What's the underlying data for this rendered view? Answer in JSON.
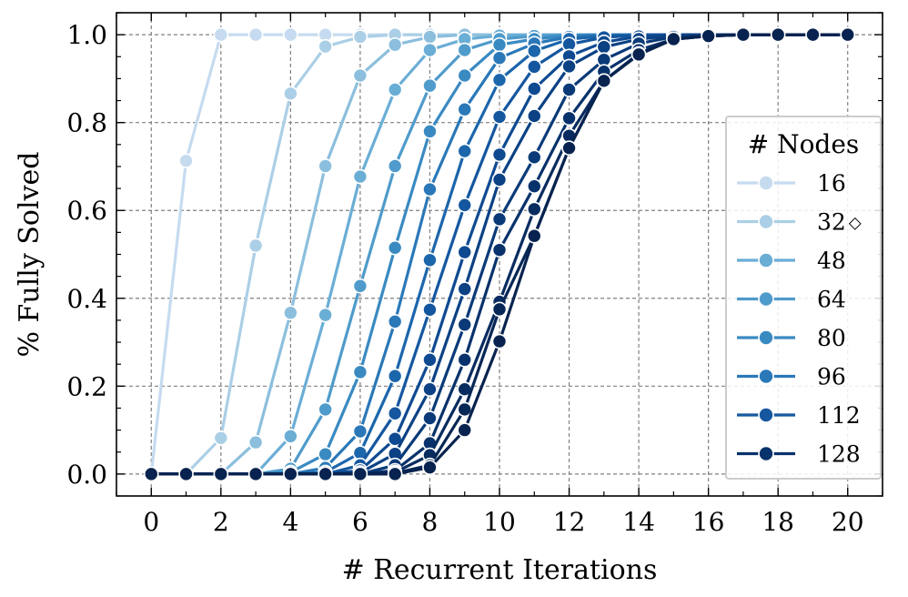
{
  "chart_data": {
    "type": "line",
    "xlabel": "# Recurrent Iterations",
    "ylabel": "% Fully Solved",
    "xlim": [
      -1,
      21
    ],
    "ylim": [
      -0.05,
      1.05
    ],
    "xticks": [
      "0",
      "2",
      "4",
      "6",
      "8",
      "10",
      "12",
      "14",
      "16",
      "18",
      "20"
    ],
    "yticks": [
      "0.0",
      "0.2",
      "0.4",
      "0.6",
      "0.8",
      "1.0"
    ],
    "grid": true,
    "legend_title": "# Nodes",
    "legend_position": "right",
    "x": [
      0,
      1,
      2,
      3,
      4,
      5,
      6,
      7,
      8,
      9,
      10,
      11,
      12,
      13,
      14,
      15,
      16,
      17,
      18,
      19,
      20
    ],
    "series": [
      {
        "name": "16",
        "color": "#c6dbef",
        "values": [
          0,
          0.713,
          1.0,
          1.0,
          1.0,
          1.0,
          1.0,
          1.0,
          1.0,
          1.0,
          1.0,
          1.0,
          1.0,
          1.0,
          1.0,
          1.0,
          1.0,
          1.0,
          1.0,
          1.0,
          1.0
        ]
      },
      {
        "name": "32◇",
        "color": "#abcfe6",
        "values": [
          0,
          0,
          0.082,
          0.52,
          0.866,
          0.973,
          0.995,
          1.0,
          1.0,
          1.0,
          1.0,
          1.0,
          1.0,
          1.0,
          1.0,
          1.0,
          1.0,
          1.0,
          1.0,
          1.0,
          1.0
        ]
      },
      {
        "name": "48",
        "color": "#8cbfdd",
        "values": [
          0,
          0,
          0,
          0.072,
          0.367,
          0.701,
          0.907,
          0.977,
          0.995,
          1.0,
          1.0,
          1.0,
          1.0,
          1.0,
          1.0,
          1.0,
          1.0,
          1.0,
          1.0,
          1.0,
          1.0
        ]
      },
      {
        "name": "64",
        "color": "#6aaed6",
        "values": [
          0,
          0,
          0,
          0,
          0.086,
          0.362,
          0.677,
          0.875,
          0.965,
          0.99,
          0.998,
          1.0,
          1.0,
          1.0,
          1.0,
          1.0,
          1.0,
          1.0,
          1.0,
          1.0,
          1.0
        ]
      },
      {
        "name": "80",
        "color": "#4f9bcb",
        "values": [
          0,
          0,
          0,
          0,
          0.012,
          0.147,
          0.428,
          0.701,
          0.884,
          0.965,
          0.99,
          0.997,
          1.0,
          1.0,
          1.0,
          1.0,
          1.0,
          1.0,
          1.0,
          1.0,
          1.0
        ]
      },
      {
        "name": "96",
        "color": "#3a8ac2",
        "values": [
          0,
          0,
          0,
          0,
          0.004,
          0.045,
          0.232,
          0.515,
          0.78,
          0.907,
          0.977,
          0.99,
          0.998,
          1.0,
          1.0,
          1.0,
          1.0,
          1.0,
          1.0,
          1.0,
          1.0
        ]
      },
      {
        "name": "112",
        "color": "#2a78b8",
        "values": [
          0,
          0,
          0,
          0,
          0,
          0.014,
          0.097,
          0.347,
          0.648,
          0.83,
          0.947,
          0.98,
          0.995,
          1.0,
          1.0,
          1.0,
          1.0,
          1.0,
          1.0,
          1.0,
          1.0
        ]
      },
      {
        "name": "128",
        "color": "#1c66ac",
        "values": [
          0,
          0,
          0,
          0,
          0,
          0.004,
          0.048,
          0.223,
          0.487,
          0.735,
          0.897,
          0.963,
          0.99,
          0.997,
          1.0,
          1.0,
          1.0,
          1.0,
          1.0,
          1.0,
          1.0
        ]
      },
      {
        "name": "",
        "color": "#15579f",
        "values": [
          0,
          0,
          0,
          0,
          0,
          0,
          0.02,
          0.138,
          0.374,
          0.612,
          0.813,
          0.927,
          0.978,
          0.994,
          0.999,
          1.0,
          1.0,
          1.0,
          1.0,
          1.0,
          1.0
        ]
      },
      {
        "name": "",
        "color": "#0f4a91",
        "values": [
          0,
          0,
          0,
          0,
          0,
          0,
          0.008,
          0.08,
          0.26,
          0.505,
          0.727,
          0.877,
          0.951,
          0.983,
          0.996,
          1.0,
          1.0,
          1.0,
          1.0,
          1.0,
          1.0
        ]
      },
      {
        "name": "",
        "color": "#0c4184",
        "values": [
          0,
          0,
          0,
          0,
          0,
          0,
          0.003,
          0.046,
          0.193,
          0.421,
          0.67,
          0.815,
          0.928,
          0.972,
          0.99,
          0.998,
          1.0,
          1.0,
          1.0,
          1.0,
          1.0
        ]
      },
      {
        "name": "",
        "color": "#0a3a78",
        "values": [
          0,
          0,
          0,
          0,
          0,
          0,
          0,
          0.02,
          0.127,
          0.34,
          0.58,
          0.721,
          0.875,
          0.943,
          0.98,
          0.995,
          0.999,
          1.0,
          1.0,
          1.0,
          1.0
        ]
      },
      {
        "name": "",
        "color": "#08326b",
        "values": [
          0,
          0,
          0,
          0,
          0,
          0,
          0,
          0.008,
          0.07,
          0.26,
          0.51,
          0.655,
          0.81,
          0.916,
          0.965,
          0.99,
          0.998,
          1.0,
          1.0,
          1.0,
          1.0
        ]
      },
      {
        "name": "",
        "color": "#082c60",
        "values": [
          0,
          0,
          0,
          0,
          0,
          0,
          0,
          0.004,
          0.043,
          0.193,
          0.392,
          0.603,
          0.77,
          0.895,
          0.957,
          0.99,
          0.997,
          1.0,
          1.0,
          1.0,
          1.0
        ]
      },
      {
        "name": "",
        "color": "#072756",
        "values": [
          0,
          0,
          0,
          0,
          0,
          0,
          0,
          0.002,
          0.02,
          0.147,
          0.375,
          0.542,
          0.742,
          0.895,
          0.955,
          0.99,
          0.997,
          1.0,
          1.0,
          1.0,
          1.0
        ]
      },
      {
        "name": "",
        "color": "#08234f",
        "values": [
          0,
          0,
          0,
          0,
          0,
          0,
          0,
          0,
          0.015,
          0.1,
          0.302,
          0.542,
          0.742,
          0.895,
          0.955,
          0.99,
          0.997,
          1.0,
          1.0,
          1.0,
          1.0
        ]
      }
    ],
    "legend": [
      {
        "label": "16",
        "color": "#c6dbef"
      },
      {
        "label": "32",
        "marker": "◇",
        "color": "#abcfe6"
      },
      {
        "label": "48",
        "color": "#6aaed6"
      },
      {
        "label": "64",
        "color": "#4f9bcb"
      },
      {
        "label": "80",
        "color": "#3a8ac2"
      },
      {
        "label": "96",
        "color": "#2a78b8"
      },
      {
        "label": "112",
        "color": "#15579f"
      },
      {
        "label": "128",
        "color": "#08326b"
      }
    ]
  }
}
